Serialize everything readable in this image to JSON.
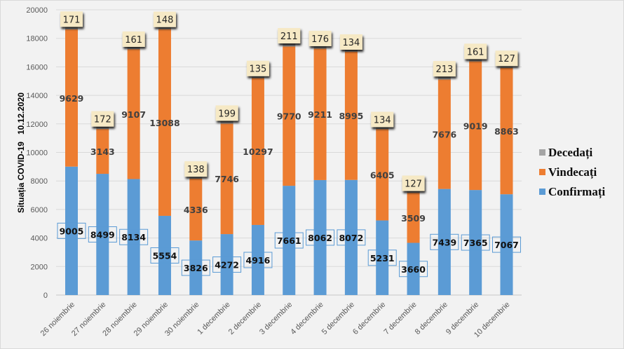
{
  "chart_data": {
    "type": "bar",
    "stacked": true,
    "title": "",
    "ylabel": "Situația COVID-19   10.12.2020",
    "xlabel": "",
    "ylim": [
      0,
      20000
    ],
    "yticks": [
      0,
      2000,
      4000,
      6000,
      8000,
      10000,
      12000,
      14000,
      16000,
      18000,
      20000
    ],
    "grid": true,
    "legend_position": "right",
    "categories": [
      "26 noiembrie",
      "27 noiembrie",
      "28 noiembrie",
      "29 noiembrie",
      "30 noiembrie",
      "1 decembrie",
      "2 decembrie",
      "3 decembrie",
      "4 decembrie",
      "5 decembrie",
      "6 decembrie",
      "7 decembrie",
      "8 decembrie",
      "9 decembrie",
      "10 decembrie"
    ],
    "series": [
      {
        "name": "Confirmați",
        "color": "#5b9bd5",
        "values": [
          9005,
          8499,
          8134,
          5554,
          3826,
          4272,
          4916,
          7661,
          8062,
          8072,
          5231,
          3660,
          7439,
          7365,
          7067
        ]
      },
      {
        "name": "Vindecați",
        "color": "#ed7d31",
        "values": [
          9629,
          3143,
          9107,
          13088,
          4336,
          7746,
          10297,
          9770,
          9211,
          8995,
          6405,
          3509,
          7676,
          9019,
          8863
        ]
      },
      {
        "name": "Decedați",
        "color": "#a5a5a5",
        "values": [
          171,
          172,
          161,
          148,
          138,
          199,
          135,
          211,
          176,
          134,
          134,
          127,
          213,
          161,
          127
        ]
      }
    ],
    "legend": [
      "Decedați",
      "Vindecați",
      "Confirmați"
    ]
  }
}
